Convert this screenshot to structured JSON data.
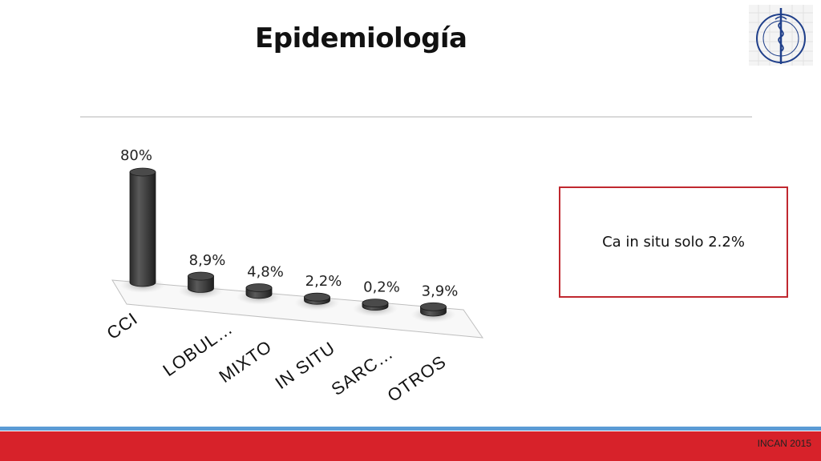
{
  "slide": {
    "title": "Epidemiología",
    "callout": "Ca in situ solo 2.2%",
    "footer": "INCAN 2015"
  },
  "logo": {
    "icon": "institution-seal-icon"
  },
  "colors": {
    "bar": "#3a3a3a",
    "accent_red": "#d7222a",
    "accent_blue": "#5b9bd5",
    "callout_border": "#c0282f"
  },
  "chart_data": {
    "type": "bar",
    "style": "3d-cylinder",
    "categories": [
      "CCI",
      "LOBUL…",
      "MIXTO",
      "IN SITU",
      "SARC…",
      "OTROS"
    ],
    "values": [
      80,
      8.9,
      4.8,
      2.2,
      0.2,
      3.9
    ],
    "data_labels": [
      "80%",
      "8,9%",
      "4,8%",
      "2,2%",
      "0,2%",
      "3,9%"
    ],
    "title": "",
    "xlabel": "",
    "ylabel": "",
    "ylim": [
      0,
      80
    ],
    "grid": false,
    "legend": "none"
  }
}
